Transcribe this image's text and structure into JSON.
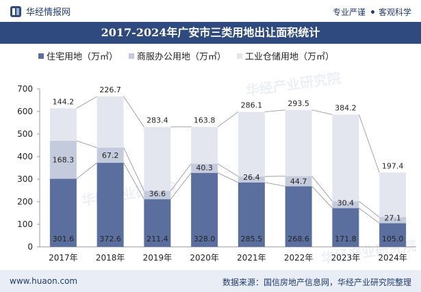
{
  "header": {
    "brand": "华经情报网",
    "slogan_left": "专业严谨",
    "slogan_right": "客观科学"
  },
  "watermark": "华经产业研究院",
  "footer": {
    "site": "www.huaon.com",
    "source": "数据来源：国信房地产信息网，华经产业研究院整理"
  },
  "colors": {
    "title_bg": "#2f4a7e",
    "residential": "#5b6f9e",
    "commercial": "#c3cbdc",
    "industrial": "#e3e6ef",
    "footer_bg": "#e9eef6"
  },
  "chart_data": {
    "type": "bar",
    "stacked": true,
    "title": "2017-2024年广安市三类用地出让面积统计",
    "categories": [
      "2017年",
      "2018年",
      "2019年",
      "2020年",
      "2021年",
      "2022年",
      "2023年",
      "2024年"
    ],
    "series": [
      {
        "name": "住宅用地（万㎡）",
        "values": [
          301.6,
          372.6,
          211.4,
          328.0,
          285.5,
          268.6,
          171.8,
          105.0
        ],
        "labels": [
          "301.6",
          "372.6",
          "211.4",
          "328.0",
          "285.5",
          "268.6",
          "171.8",
          "105.0"
        ]
      },
      {
        "name": "商服办公用地（万㎡）",
        "values": [
          168.3,
          67.2,
          36.6,
          40.3,
          26.4,
          44.7,
          30.4,
          27.1
        ],
        "labels": [
          "168.3",
          "67.2",
          "36.6",
          "40.3",
          "26.4",
          "44.7",
          "30.4",
          "27.1"
        ]
      },
      {
        "name": "工业仓储用地（万㎡）",
        "values": [
          144.2,
          226.7,
          283.4,
          163.8,
          286.1,
          293.5,
          384.2,
          197.4
        ],
        "labels": [
          "144.2",
          "226.7",
          "283.4",
          "163.8",
          "286.1",
          "293.5",
          "384.2",
          "197.4"
        ]
      }
    ],
    "ylim": [
      0,
      700
    ],
    "yticks": [
      "0",
      "100",
      "200",
      "300",
      "400",
      "500",
      "600",
      "700"
    ],
    "grid": false,
    "legend": "top"
  }
}
